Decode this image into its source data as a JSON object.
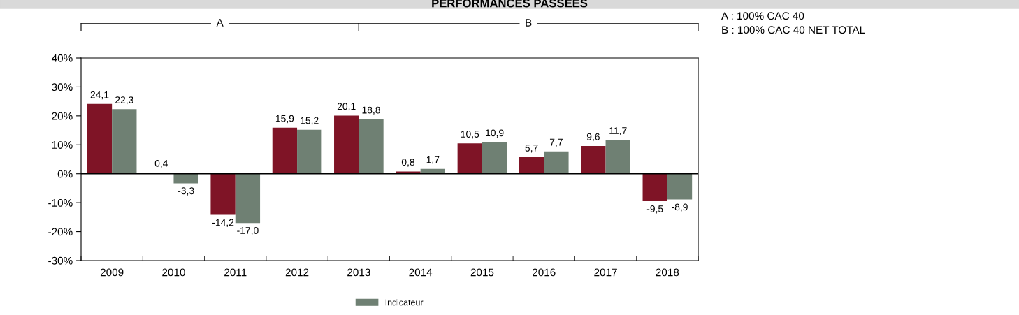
{
  "chart_data": {
    "type": "bar",
    "title": "PERFORMANCES PASSEES",
    "categories": [
      "2009",
      "2010",
      "2011",
      "2012",
      "2013",
      "2014",
      "2015",
      "2016",
      "2017",
      "2018"
    ],
    "series": [
      {
        "color": "#7f1426",
        "values": [
          24.1,
          0.4,
          -14.2,
          15.9,
          20.1,
          0.8,
          10.5,
          5.7,
          9.6,
          -9.5
        ],
        "value_labels": [
          "24,1",
          "0,4",
          "-14,2",
          "15,9",
          "20,1",
          "0,8",
          "10,5",
          "5,7",
          "9,6",
          "-9,5"
        ]
      },
      {
        "name": "Indicateur",
        "color": "#6f8073",
        "values": [
          22.3,
          -3.3,
          -17.0,
          15.2,
          18.8,
          1.7,
          10.9,
          7.7,
          11.7,
          -8.9
        ],
        "value_labels": [
          "22,3",
          "-3,3",
          "-17,0",
          "15,2",
          "18,8",
          "1,7",
          "10,9",
          "7,7",
          "11,7",
          "-8,9"
        ]
      }
    ],
    "ylim": [
      -30,
      40
    ],
    "yticks": [
      {
        "value": -30,
        "label": "-30%"
      },
      {
        "value": -20,
        "label": "-20%"
      },
      {
        "value": -10,
        "label": "-10%"
      },
      {
        "value": 0,
        "label": "0%"
      },
      {
        "value": 10,
        "label": "10%"
      },
      {
        "value": 20,
        "label": "20%"
      },
      {
        "value": 30,
        "label": "30%"
      },
      {
        "value": 40,
        "label": "40%"
      }
    ],
    "ref_lines": [
      {
        "axis": "y",
        "value": 0,
        "color": "#000000"
      }
    ],
    "legend": "bottom",
    "annotations": [
      "A",
      "B",
      "A : 100% CAC 40",
      "B : 100% CAC 40 NET TOTAL"
    ]
  }
}
